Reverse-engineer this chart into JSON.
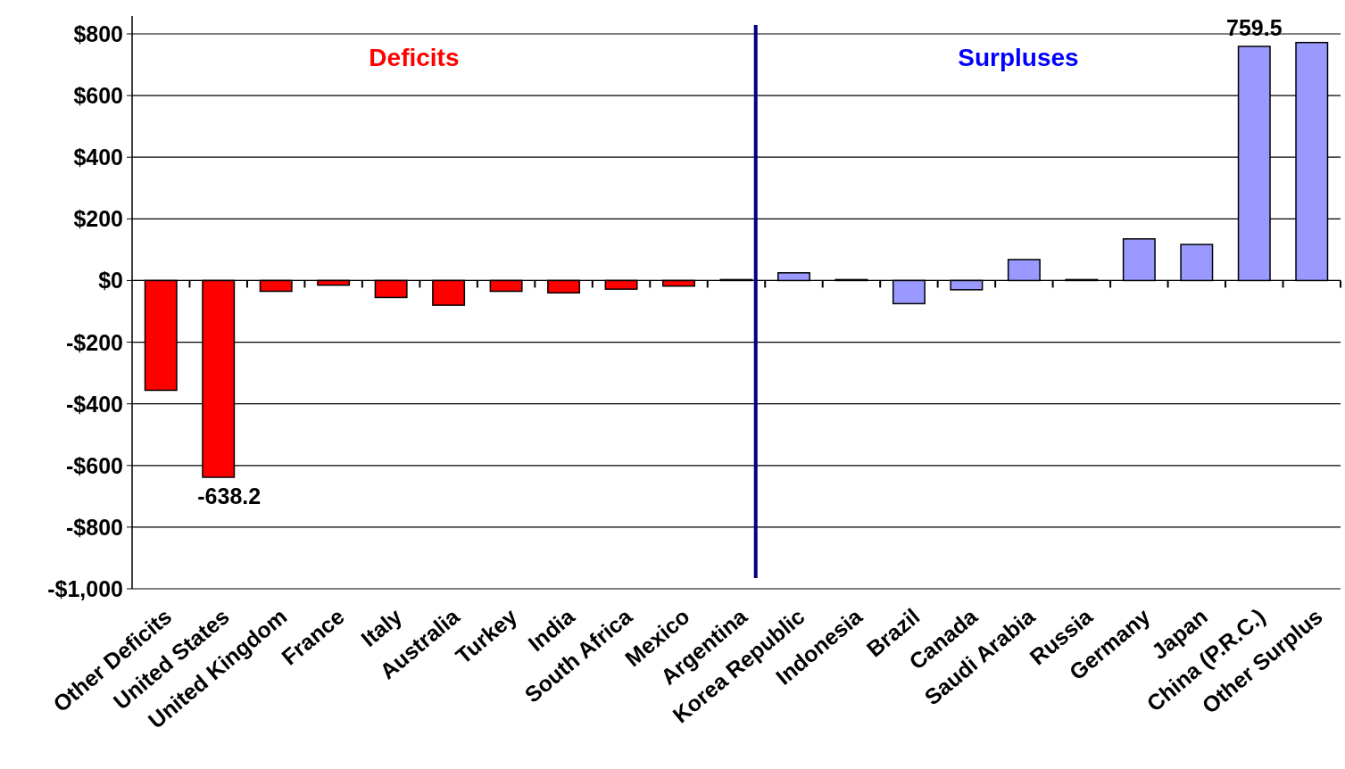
{
  "chart_data": {
    "type": "bar",
    "categories": [
      "Other Deficits",
      "United States",
      "United Kingdom",
      "France",
      "Italy",
      "Australia",
      "Turkey",
      "India",
      "South Africa",
      "Mexico",
      "Argentina",
      "Korea Republic",
      "Indonesia",
      "Brazil",
      "Canada",
      "Saudi Arabia",
      "Russia",
      "Germany",
      "Japan",
      "China (P.R.C.)",
      "Other Surplus"
    ],
    "values": [
      -356,
      -638.2,
      -35,
      -15,
      -55,
      -80,
      -35,
      -40,
      -28,
      -18,
      3,
      25,
      3,
      -75,
      -30,
      68,
      3,
      135,
      117,
      759.5,
      772
    ],
    "value_labels": [
      null,
      "-638.2",
      null,
      null,
      null,
      null,
      null,
      null,
      null,
      null,
      null,
      null,
      null,
      null,
      null,
      null,
      null,
      null,
      null,
      "759.5",
      null
    ],
    "colors": [
      "#ff0000",
      "#ff0000",
      "#ff0000",
      "#ff0000",
      "#ff0000",
      "#ff0000",
      "#ff0000",
      "#ff0000",
      "#ff0000",
      "#ff0000",
      "#ff0000",
      "#9999ff",
      "#9999ff",
      "#9999ff",
      "#9999ff",
      "#9999ff",
      "#9999ff",
      "#9999ff",
      "#9999ff",
      "#9999ff",
      "#9999ff"
    ],
    "ylim": [
      -1000,
      800
    ],
    "yticks": [
      {
        "value": -1000,
        "label": "-$1,000"
      },
      {
        "value": -800,
        "label": "-$800"
      },
      {
        "value": -600,
        "label": "-$600"
      },
      {
        "value": -400,
        "label": "-$400"
      },
      {
        "value": -200,
        "label": "-$200"
      },
      {
        "value": 0,
        "label": "$0"
      },
      {
        "value": 200,
        "label": "$200"
      },
      {
        "value": 400,
        "label": "$400"
      },
      {
        "value": 600,
        "label": "$600"
      },
      {
        "value": 800,
        "label": "$800"
      }
    ],
    "grid": "y",
    "ref_lines": [
      {
        "axis": "x",
        "value": "Argentina",
        "color": "#000080"
      }
    ],
    "annotations": [
      "Deficits",
      "Surpluses"
    ]
  }
}
